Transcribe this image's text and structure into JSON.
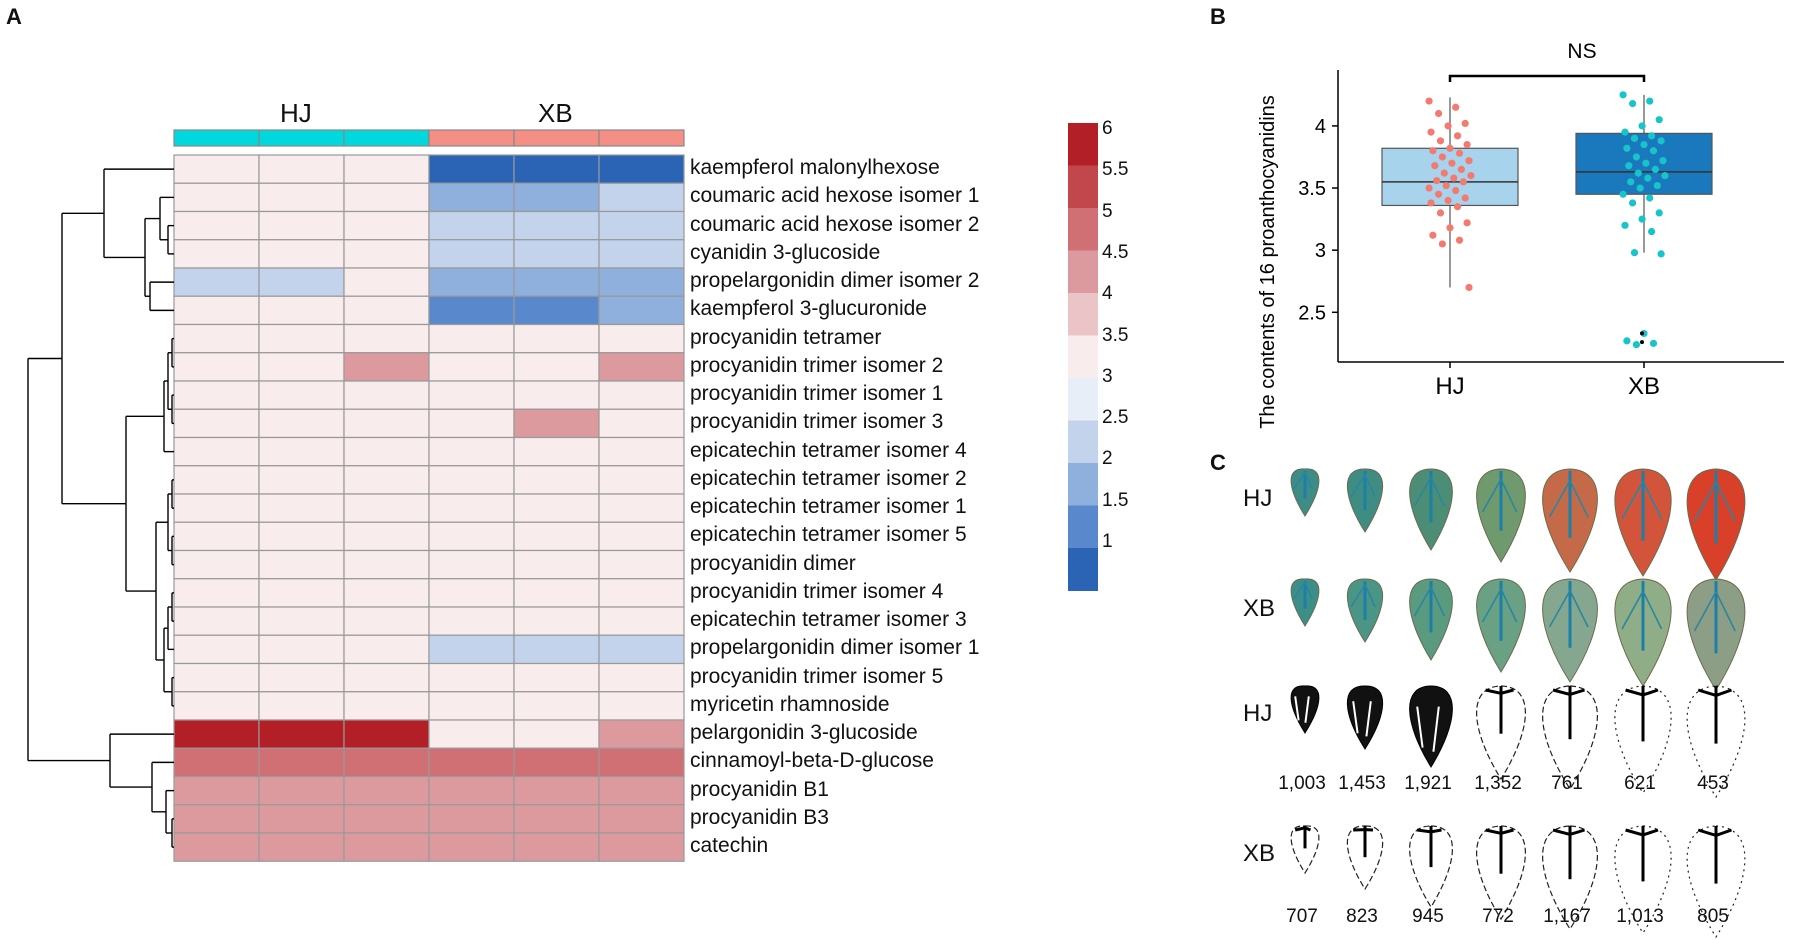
{
  "panels": {
    "a": "A",
    "b": "B",
    "c": "C"
  },
  "chart_data": [
    {
      "type": "heatmap",
      "panel": "A",
      "groups": [
        "HJ",
        "XB"
      ],
      "group_colors": [
        "#00d8dd",
        "#f58e85"
      ],
      "columns": [
        "HJ",
        "HJ",
        "HJ",
        "XB",
        "XB",
        "XB"
      ],
      "rows": [
        "kaempferol malonylhexose",
        "coumaric acid hexose isomer 1",
        "coumaric acid hexose isomer 2",
        "cyanidin 3-glucoside",
        "propelargonidin dimer isomer 2",
        "kaempferol 3-glucuronide",
        "procyanidin tetramer",
        "procyanidin trimer isomer 2",
        "procyanidin trimer isomer 1",
        "procyanidin trimer isomer 3",
        "epicatechin tetramer isomer 4",
        "epicatechin tetramer isomer 2",
        "epicatechin tetramer isomer 1",
        "epicatechin tetramer isomer 5",
        "procyanidin dimer",
        "procyanidin trimer isomer 4",
        "epicatechin tetramer isomer 3",
        "propelargonidin dimer isomer 1",
        "procyanidin trimer isomer 5",
        "myricetin rhamnoside",
        "pelargonidin 3-glucoside",
        "cinnamoyl-beta-D-glucose",
        "procyanidin B1",
        "procyanidin B3",
        "catechin"
      ],
      "values": [
        [
          3.7,
          3.7,
          3.7,
          1.0,
          1.0,
          1.0
        ],
        [
          3.7,
          3.7,
          3.7,
          2.1,
          2.1,
          2.7
        ],
        [
          3.7,
          3.3,
          3.7,
          2.6,
          2.6,
          2.6
        ],
        [
          3.3,
          3.7,
          3.7,
          2.6,
          2.6,
          2.6
        ],
        [
          2.6,
          2.7,
          3.3,
          2.1,
          2.1,
          2.1
        ],
        [
          3.7,
          3.3,
          3.7,
          1.5,
          1.5,
          2.1
        ],
        [
          3.7,
          3.7,
          3.7,
          3.7,
          3.7,
          3.7
        ],
        [
          3.7,
          3.7,
          4.3,
          3.7,
          3.7,
          4.3
        ],
        [
          3.7,
          3.7,
          3.7,
          3.7,
          3.7,
          3.7
        ],
        [
          3.7,
          3.7,
          3.7,
          3.7,
          4.3,
          3.7
        ],
        [
          3.7,
          3.7,
          3.7,
          3.7,
          3.7,
          3.7
        ],
        [
          3.3,
          3.3,
          3.3,
          3.7,
          3.7,
          3.7
        ],
        [
          3.7,
          3.3,
          3.3,
          3.7,
          3.7,
          3.7
        ],
        [
          3.7,
          3.3,
          3.7,
          3.7,
          3.7,
          3.7
        ],
        [
          3.7,
          3.3,
          3.7,
          3.3,
          3.3,
          3.3
        ],
        [
          3.3,
          3.3,
          3.3,
          3.3,
          3.3,
          3.3
        ],
        [
          3.3,
          3.3,
          3.3,
          3.3,
          3.3,
          3.7
        ],
        [
          3.3,
          3.3,
          3.3,
          2.7,
          2.7,
          2.7
        ],
        [
          3.3,
          3.3,
          3.3,
          3.3,
          3.3,
          3.3
        ],
        [
          3.3,
          3.3,
          3.3,
          3.3,
          3.3,
          3.3
        ],
        [
          6.0,
          6.0,
          6.0,
          3.7,
          3.7,
          4.3
        ],
        [
          4.9,
          4.9,
          4.9,
          4.9,
          4.9,
          4.9
        ],
        [
          4.4,
          4.4,
          4.4,
          4.4,
          4.4,
          4.4
        ],
        [
          4.4,
          4.4,
          4.4,
          4.4,
          4.4,
          4.4
        ],
        [
          4.4,
          4.4,
          4.4,
          4.4,
          4.4,
          4.4
        ]
      ],
      "colorbar": {
        "ticks": [
          "6",
          "5.5",
          "5",
          "4.5",
          "4",
          "3.5",
          "3",
          "2.5",
          "2",
          "1.5",
          "1"
        ],
        "colors": [
          "#b31f26",
          "#c2474c",
          "#d07075",
          "#dd9a9e",
          "#eac4c6",
          "#f8ecec",
          "#e8eef8",
          "#c3d3eb",
          "#8fafdc",
          "#5a88cc",
          "#2b64b4"
        ]
      }
    },
    {
      "type": "box",
      "panel": "B",
      "ylabel": "The contents of 16 proanthocyanidins",
      "categories": [
        "HJ",
        "XB"
      ],
      "yticks": [
        "2.5",
        "3",
        "3.5",
        "4"
      ],
      "ylim": [
        2.1,
        4.45
      ],
      "significance": "NS",
      "boxes": [
        {
          "name": "HJ",
          "q1": 3.36,
          "median": 3.55,
          "q3": 3.82,
          "whisker_low": 2.7,
          "whisker_high": 4.23,
          "box_color": "#a8d3ec",
          "point_color": "#f47a70"
        },
        {
          "name": "XB",
          "q1": 3.45,
          "median": 3.63,
          "q3": 3.94,
          "whisker_low": 2.98,
          "whisker_high": 4.25,
          "box_color": "#1a78bd",
          "point_color": "#17c4c9"
        }
      ],
      "points": [
        [
          4.2,
          4.15,
          4.1,
          4.02,
          4.0,
          3.95,
          3.92,
          3.88,
          3.85,
          3.82,
          3.8,
          3.78,
          3.75,
          3.72,
          3.7,
          3.68,
          3.65,
          3.62,
          3.6,
          3.58,
          3.56,
          3.55,
          3.52,
          3.5,
          3.48,
          3.45,
          3.42,
          3.4,
          3.38,
          3.35,
          3.3,
          3.22,
          3.18,
          3.12,
          3.08,
          3.05,
          2.7
        ],
        [
          4.25,
          4.2,
          4.18,
          4.05,
          4.0,
          3.95,
          3.92,
          3.9,
          3.88,
          3.85,
          3.82,
          3.8,
          3.75,
          3.72,
          3.7,
          3.68,
          3.65,
          3.62,
          3.6,
          3.58,
          3.55,
          3.52,
          3.5,
          3.45,
          3.42,
          3.38,
          3.3,
          3.25,
          3.2,
          3.15,
          2.98,
          2.97,
          2.33,
          2.27,
          2.25,
          2.24
        ]
      ],
      "outliers": [
        [],
        [
          2.33,
          2.26
        ]
      ]
    }
  ],
  "strawberry_panel": {
    "rows": [
      {
        "label": "HJ",
        "kind": "photo"
      },
      {
        "label": "XB",
        "kind": "photo"
      },
      {
        "label": "HJ",
        "kind": "mask",
        "counts": [
          "1,003",
          "1,453",
          "1,921",
          "1,352",
          "761",
          "621",
          "453"
        ]
      },
      {
        "label": "XB",
        "kind": "mask",
        "counts": [
          "707",
          "823",
          "945",
          "772",
          "1,167",
          "1,013",
          "805"
        ]
      }
    ]
  }
}
